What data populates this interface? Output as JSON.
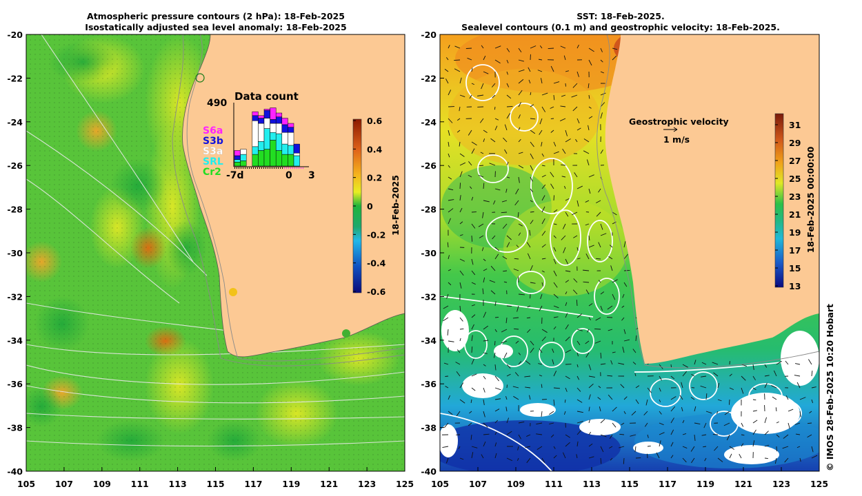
{
  "left_panel": {
    "title_line1": "Atmospheric pressure contours (2 hPa): 18-Feb-2025",
    "title_line2": "Isostatically adjusted sea level anomaly: 18-Feb-2025",
    "colorbar": {
      "ticks": [
        "0.6",
        "0.4",
        "0.2",
        "0",
        "-0.2",
        "-0.4",
        "-0.6"
      ],
      "label": "18-Feb-2025",
      "range": [
        -0.6,
        0.6
      ],
      "colors": {
        "top": "#8b1a00",
        "orange": "#f59a1d",
        "yellow": "#e8ee22",
        "green": "#1fb43b",
        "cyan": "#22b8e8",
        "bottom": "#0a0a7a"
      }
    },
    "inset": {
      "title": "Data count",
      "max_label": "490",
      "max_value": 490,
      "xlabels": [
        "-7d",
        "0",
        "3"
      ],
      "legend": [
        {
          "name": "S6a",
          "color": "#ff22ff"
        },
        {
          "name": "S3b",
          "color": "#1111dd"
        },
        {
          "name": "S3a",
          "color": "#ffffff"
        },
        {
          "name": "SRL",
          "color": "#22eeee"
        },
        {
          "name": "Cr2",
          "color": "#22dd22"
        }
      ],
      "bars": [
        [
          40,
          30,
          0,
          20,
          30
        ],
        [
          0,
          0,
          40,
          50,
          40
        ],
        [
          0,
          0,
          0,
          0,
          0
        ],
        [
          30,
          40,
          200,
          60,
          90
        ],
        [
          20,
          40,
          140,
          70,
          120
        ],
        [
          10,
          60,
          80,
          160,
          130
        ],
        [
          90,
          30,
          70,
          60,
          200
        ],
        [
          30,
          50,
          80,
          130,
          120
        ],
        [
          50,
          60,
          90,
          80,
          90
        ],
        [
          30,
          40,
          100,
          70,
          90
        ],
        [
          0,
          70,
          20,
          80,
          0
        ],
        [
          0,
          0,
          0,
          0,
          0
        ]
      ]
    }
  },
  "right_panel": {
    "title_line1": "SST: 18-Feb-2025.",
    "title_line2": "Sealevel contours (0.1 m) and geostrophic velocity: 18-Feb-2025.",
    "velocity_label": "Geostrophic velocity",
    "velocity_scale": "1 m/s",
    "colorbar": {
      "ticks": [
        "31",
        "29",
        "27",
        "25",
        "23",
        "21",
        "19",
        "17",
        "15",
        "13"
      ],
      "label": "18-Feb-2025 00:00:00",
      "range": [
        13,
        32
      ],
      "colors": {
        "top": "#7a1a0a",
        "orange": "#f0a01a",
        "yellow": "#e0e826",
        "green": "#2cc048",
        "cyan": "#20b8d8",
        "blue": "#1a5ac8",
        "bottom": "#0a0a80"
      }
    }
  },
  "axes": {
    "lat_ticks": [
      "-20",
      "-22",
      "-24",
      "-26",
      "-28",
      "-30",
      "-32",
      "-34",
      "-36",
      "-38",
      "-40"
    ],
    "lon_ticks": [
      "105",
      "107",
      "109",
      "111",
      "113",
      "115",
      "117",
      "119",
      "121",
      "123",
      "125"
    ],
    "lat_range": [
      -40,
      -20
    ],
    "lon_range": [
      105,
      125
    ]
  },
  "colors": {
    "land": "#fcc994",
    "contour": "#e8e8e8",
    "coast": "#8a8a8a"
  },
  "copyright": "© IMOS 28-Feb-2025 10:20 Hobart"
}
